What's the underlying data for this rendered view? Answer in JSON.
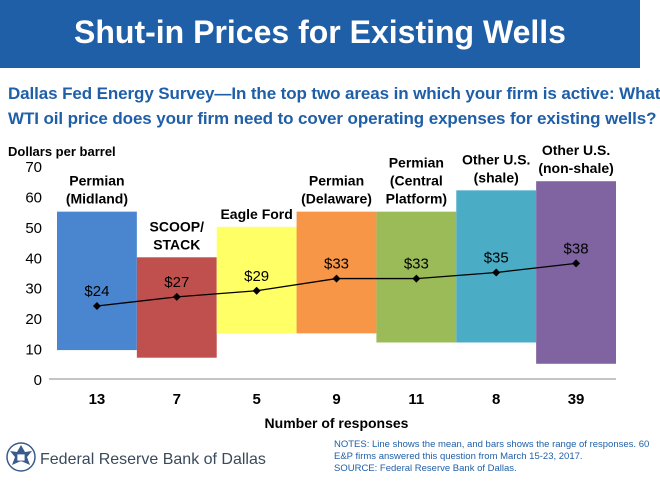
{
  "title": "Shut-in Prices for Existing Wells",
  "subtitle_lines": [
    "Dallas Fed Energy Survey—In the top two areas in which your firm is active: What",
    "WTI oil price does your firm need to cover operating expenses for existing wells?"
  ],
  "notes_lines": [
    "NOTES: Line shows the mean, and bars shows the range of responses. 60",
    "E&P firms answered this question from March 15-23, 2017.",
    "SOURCE: Federal Reserve Bank of Dallas."
  ],
  "organization": "Federal Reserve Bank of Dallas",
  "chart_data": {
    "type": "bar",
    "ylabel": "Dollars per barrel",
    "xlabel": "Number of responses",
    "ylim": [
      0,
      70
    ],
    "yticks": [
      0,
      10,
      20,
      30,
      40,
      50,
      60,
      70
    ],
    "grid": false,
    "legend": "none",
    "categories": [
      {
        "label": [
          "Permian",
          "(Midland)"
        ],
        "responses": "13",
        "low": 9.5,
        "high": 55,
        "mean": 24,
        "mean_label": "$24",
        "color": "#4a86cf"
      },
      {
        "label": [
          "SCOOP/",
          "STACK"
        ],
        "responses": "7",
        "low": 7,
        "high": 40,
        "mean": 27,
        "mean_label": "$27",
        "color": "#c0504d"
      },
      {
        "label": [
          "Eagle Ford"
        ],
        "responses": "5",
        "low": 15,
        "high": 50,
        "mean": 29,
        "mean_label": "$29",
        "color": "#ffff66"
      },
      {
        "label": [
          "Permian",
          "(Delaware)"
        ],
        "responses": "9",
        "low": 15,
        "high": 55,
        "mean": 33,
        "mean_label": "$33",
        "color": "#f79646"
      },
      {
        "label": [
          "Permian",
          "(Central",
          "Platform)"
        ],
        "responses": "11",
        "low": 12,
        "high": 55,
        "mean": 33,
        "mean_label": "$33",
        "color": "#9bbb59"
      },
      {
        "label": [
          "Other U.S.",
          "(shale)"
        ],
        "responses": "8",
        "low": 12,
        "high": 62,
        "mean": 35,
        "mean_label": "$35",
        "color": "#4bacc6"
      },
      {
        "label": [
          "Other U.S.",
          "(non-shale)"
        ],
        "responses": "39",
        "low": 5,
        "high": 65,
        "mean": 38,
        "mean_label": "$38",
        "color": "#8064a2"
      }
    ]
  }
}
